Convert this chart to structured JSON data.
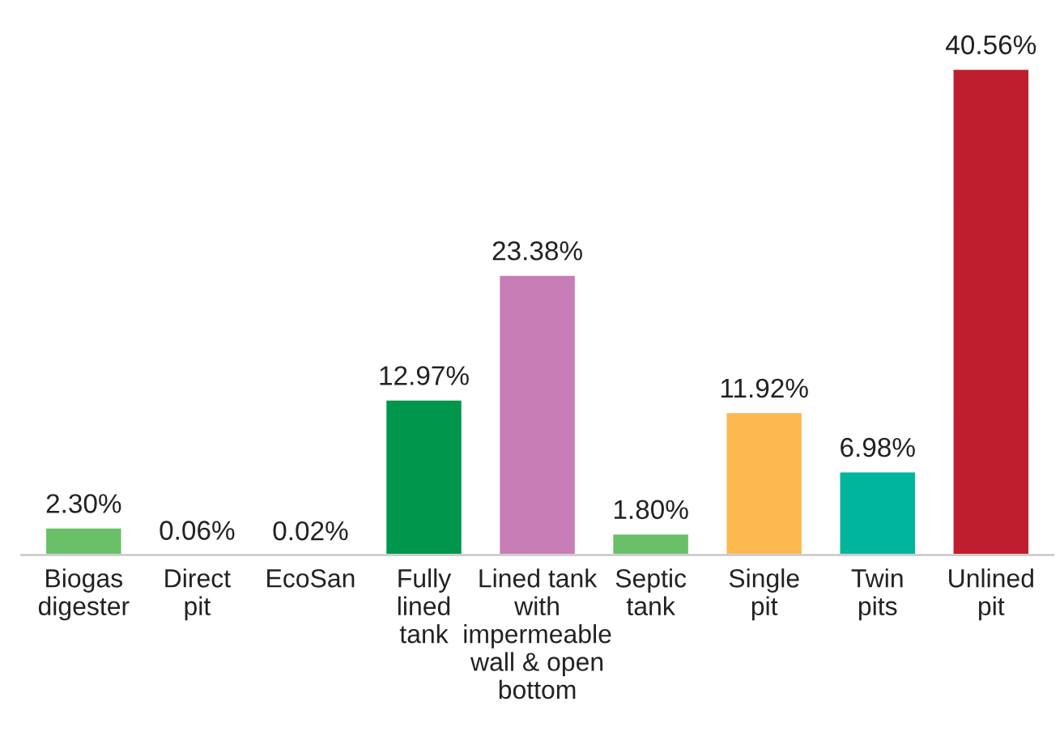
{
  "chart_data": {
    "type": "bar",
    "categories": [
      "Biogas\ndigester",
      "Direct\npit",
      "EcoSan",
      "Fully\nlined\ntank",
      "Lined tank\nwith\nimpermeable\nwall & open\nbottom",
      "Septic\ntank",
      "Single\npit",
      "Twin\npits",
      "Unlined\npit"
    ],
    "values": [
      2.3,
      0.06,
      0.02,
      12.97,
      23.38,
      1.8,
      11.92,
      6.98,
      40.56
    ],
    "value_labels": [
      "2.30%",
      "0.06%",
      "0.02%",
      "12.97%",
      "23.38%",
      "1.80%",
      "11.92%",
      "6.98%",
      "40.56%"
    ],
    "colors": [
      "#6abf69",
      "#7f7f7f",
      "#7f7f7f",
      "#00964b",
      "#c77db5",
      "#6abf69",
      "#fbb950",
      "#00b59d",
      "#be1e2e"
    ],
    "grid": false,
    "legend": false
  }
}
